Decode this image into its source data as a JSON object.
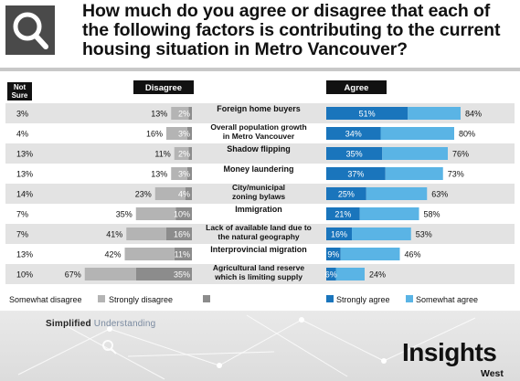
{
  "header": {
    "title": "How much do you agree or disagree that each of the following factors is contributing to the current housing situation in Metro Vancouver?"
  },
  "chart_data": {
    "type": "bar",
    "column_headers": {
      "not_sure": "Not Sure",
      "disagree": "Disagree",
      "agree": "Agree"
    },
    "categories": [
      "Foreign home buyers",
      "Overall population growth in Metro Vancouver",
      "Shadow flipping",
      "Money laundering",
      "City/municipal zoning bylaws",
      "Immigration",
      "Lack of available land due to the natural geography",
      "Interprovincial migration",
      "Agricultural land reserve which is limiting supply"
    ],
    "not_sure": [
      3,
      4,
      13,
      13,
      14,
      7,
      7,
      13,
      10
    ],
    "disagree_total": [
      13,
      16,
      11,
      13,
      23,
      35,
      41,
      42,
      67
    ],
    "agree_total": [
      84,
      80,
      76,
      73,
      63,
      58,
      53,
      46,
      24
    ],
    "series": [
      {
        "name": "Somewhat disagree",
        "color": "#b4b4b4",
        "values": [
          11,
          13,
          9,
          10,
          19,
          25,
          25,
          31,
          32
        ]
      },
      {
        "name": "Strongly disagree",
        "color": "#8c8c8c",
        "values": [
          2,
          3,
          2,
          3,
          4,
          10,
          16,
          11,
          35
        ]
      },
      {
        "name": "Strongly agree",
        "color": "#1a75bc",
        "values": [
          51,
          34,
          35,
          37,
          25,
          21,
          16,
          9,
          6
        ]
      },
      {
        "name": "Somewhat agree",
        "color": "#5ab4e5",
        "values": [
          33,
          46,
          41,
          36,
          38,
          37,
          37,
          37,
          18
        ]
      }
    ],
    "label_suffix": "%"
  },
  "footer": {
    "tagline_a": "Simplifie",
    "tagline_b": "d",
    "tagline_c": " Understanding",
    "brand": "Insights",
    "brand_sub": "West"
  },
  "colors": {
    "row_band": "#e3e3e3",
    "strongly_agree": "#1a75bc",
    "somewhat_agree": "#5ab4e5",
    "strongly_disagree": "#8c8c8c",
    "somewhat_disagree": "#b4b4b4",
    "header_tab": "#111111"
  },
  "icons": {
    "header": "search-icon",
    "footer": "search-icon"
  }
}
